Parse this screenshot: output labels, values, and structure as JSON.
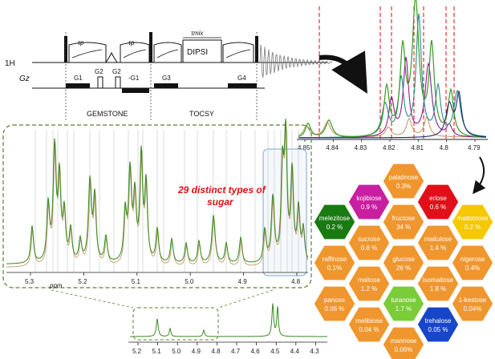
{
  "colors": {
    "green": "#3a8a22",
    "tan": "#c9a47a",
    "red_dash": "#e02020",
    "hex_orange": "#f0962e",
    "hex_magenta": "#c81ea0",
    "hex_red": "#e0101a",
    "hex_darkgreen": "#1a7a12",
    "hex_yellow": "#f5c800",
    "hex_lightgreen": "#7ccc3a",
    "hex_blue": "#1846c8",
    "dashed_box": "#5b7f2a",
    "highlight_box": "#7fa6d0"
  },
  "pulse_sequence": {
    "h_label": "1H",
    "gz_label": "Gz",
    "tau_label": "τp",
    "tau_mix_label": "τmix",
    "dipsi_label": "DIPSI",
    "gradients": [
      "G1",
      "G2",
      "G2",
      "-G1",
      "G3",
      "G4"
    ],
    "block_gemstone": "GEMSTONE",
    "block_tocsy": "TOCSY"
  },
  "main_spectrum": {
    "ticks": [
      "5.3",
      "5.2",
      "5.1",
      "5.0",
      "4.9",
      "4.8"
    ],
    "ppm_label": "ppm",
    "annotation_line1": "29 distinct types of",
    "annotation_line2": "sugar"
  },
  "zoom_spectrum": {
    "ticks": [
      "4.85",
      "4.84",
      "4.83",
      "4.82",
      "4.81",
      "4.8",
      "4.79"
    ]
  },
  "bottom_spectrum": {
    "ticks": [
      "5.2",
      "5.1",
      "5.0",
      "4.9",
      "4.8",
      "4.7",
      "4.6",
      "4.5",
      "4.4",
      "4.3"
    ]
  },
  "sugars": [
    {
      "name": "palatinose",
      "value": "0.3%",
      "color": "#f0962e"
    },
    {
      "name": "kojibiose",
      "value": "0.9 %",
      "color": "#c81ea0"
    },
    {
      "name": "erlose",
      "value": "0.6 %",
      "color": "#e0101a"
    },
    {
      "name": "melezitose",
      "value": "0.2 %",
      "color": "#1a7a12"
    },
    {
      "name": "fructose",
      "value": "34 %",
      "color": "#f0962e"
    },
    {
      "name": "maltotriose",
      "value": "0.2 %",
      "color": "#f5c800"
    },
    {
      "name": "sucrose",
      "value": "0.8 %",
      "color": "#f0962e"
    },
    {
      "name": "maltulose",
      "value": "1.4 %",
      "color": "#f0962e"
    },
    {
      "name": "raffinose",
      "value": "0.1%",
      "color": "#f0962e"
    },
    {
      "name": "glucose",
      "value": "26 %",
      "color": "#f0962e"
    },
    {
      "name": "nigerose",
      "value": "0.4%",
      "color": "#f0962e"
    },
    {
      "name": "maltose",
      "value": "1.2 %",
      "color": "#f0962e"
    },
    {
      "name": "isomaltose",
      "value": "1.8 %",
      "color": "#f0962e"
    },
    {
      "name": "panose",
      "value": "0.06 %",
      "color": "#f0962e"
    },
    {
      "name": "turanose",
      "value": "1.7 %",
      "color": "#7ccc3a"
    },
    {
      "name": "1-kestose",
      "value": "0.04%",
      "color": "#f0962e"
    },
    {
      "name": "melibiose",
      "value": "0.04 %",
      "color": "#f0962e"
    },
    {
      "name": "trehalose",
      "value": "0.05 %",
      "color": "#1846c8"
    },
    {
      "name": "mannose",
      "value": "0.06%",
      "color": "#f0962e"
    }
  ]
}
